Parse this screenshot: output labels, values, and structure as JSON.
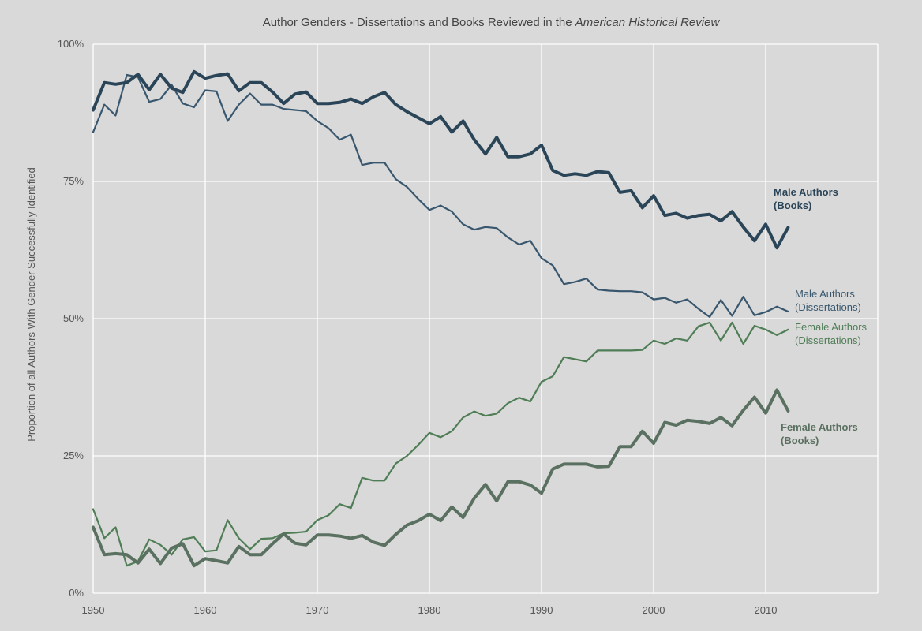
{
  "chart_data": {
    "type": "line",
    "title": {
      "main": "Author Genders - Dissertations and Books Reviewed in the ",
      "italic": "American Historical Review"
    },
    "xlabel": "",
    "ylabel": "Proportion of all Authors With Gender Successfully Identified",
    "xlim": [
      1950,
      2020
    ],
    "ylim": [
      0,
      100
    ],
    "x_ticks": [
      1950,
      1960,
      1970,
      1980,
      1990,
      2000,
      2010
    ],
    "x_tick_labels": [
      "1950",
      "1960",
      "1970",
      "1980",
      "1990",
      "2000",
      "2010"
    ],
    "y_ticks": [
      0,
      25,
      50,
      75,
      100
    ],
    "y_tick_labels": [
      "0%",
      "25%",
      "50%",
      "75%",
      "100%"
    ],
    "grid": true,
    "x": [
      1950,
      1951,
      1952,
      1953,
      1954,
      1955,
      1956,
      1957,
      1958,
      1959,
      1960,
      1961,
      1962,
      1963,
      1964,
      1965,
      1966,
      1967,
      1968,
      1969,
      1970,
      1971,
      1972,
      1973,
      1974,
      1975,
      1976,
      1977,
      1978,
      1979,
      1980,
      1981,
      1982,
      1983,
      1984,
      1985,
      1986,
      1987,
      1988,
      1989,
      1990,
      1991,
      1992,
      1993,
      1994,
      1995,
      1996,
      1997,
      1998,
      1999,
      2000,
      2001,
      2002,
      2003,
      2004,
      2005,
      2006,
      2007,
      2008,
      2009,
      2010,
      2011,
      2012
    ],
    "series": [
      {
        "name": "Male Authors (Books)",
        "label_lines": [
          "Male Authors",
          "(Books)"
        ],
        "color": "#2b4558",
        "width": 4,
        "bold": true,
        "values": [
          88,
          93,
          92.7,
          93,
          94.5,
          91.7,
          94.5,
          92,
          91.2,
          95,
          93.8,
          94.3,
          94.6,
          91.5,
          93,
          93,
          91.3,
          89.2,
          90.9,
          91.3,
          89.2,
          89.2,
          89.4,
          90,
          89.2,
          90.4,
          91.2,
          89,
          87.7,
          86.6,
          85.5,
          86.8,
          84,
          86,
          82.6,
          80,
          83,
          79.5,
          79.5,
          80,
          81.6,
          77,
          76.1,
          76.4,
          76.1,
          76.8,
          76.6,
          73,
          73.3,
          70.2,
          72.4,
          68.8,
          69.2,
          68.3,
          68.8,
          69,
          67.8,
          69.5,
          66.7,
          64.2,
          67.2,
          62.9,
          66.6
        ]
      },
      {
        "name": "Male Authors (Dissertations)",
        "label_lines": [
          "Male Authors",
          "(Dissertations)"
        ],
        "color": "#38576e",
        "width": 2.2,
        "bold": false,
        "values": [
          84,
          89,
          87,
          94.4,
          94,
          89.5,
          90,
          92.6,
          89.2,
          88.5,
          91.6,
          91.4,
          86,
          89,
          91,
          89,
          89,
          88.2,
          88,
          87.8,
          86,
          84.7,
          82.6,
          83.5,
          78,
          78.4,
          78.4,
          75.4,
          74,
          71.8,
          69.8,
          70.6,
          69.5,
          67.2,
          66.2,
          66.7,
          66.5,
          64.8,
          63.5,
          64.2,
          61,
          59.7,
          56.3,
          56.7,
          57.3,
          55.3,
          55.1,
          55,
          55,
          54.8,
          53.5,
          53.8,
          52.9,
          53.5,
          51.8,
          50.3,
          53.4,
          50.5,
          54,
          50.6,
          51.2,
          52.2,
          51.3
        ]
      },
      {
        "name": "Female Authors (Dissertations)",
        "label_lines": [
          "Female Authors",
          "(Dissertations)"
        ],
        "color": "#4f7d55",
        "width": 2.2,
        "bold": false,
        "values": [
          15.3,
          10,
          12,
          5,
          5.8,
          9.8,
          8.8,
          7,
          9.8,
          10.2,
          7.6,
          7.8,
          13.3,
          10,
          8,
          9.9,
          10,
          10.9,
          11,
          11.2,
          13.3,
          14.2,
          16.2,
          15.5,
          21,
          20.5,
          20.5,
          23.6,
          25,
          27,
          29.2,
          28.4,
          29.5,
          32,
          33.1,
          32.3,
          32.7,
          34.6,
          35.6,
          34.9,
          38.5,
          39.5,
          43,
          42.6,
          42.2,
          44.2,
          44.2,
          44.2,
          44.2,
          44.3,
          46,
          45.4,
          46.4,
          46,
          48.6,
          49.3,
          46,
          49.3,
          45.4,
          48.7,
          48,
          47,
          48
        ]
      },
      {
        "name": "Female Authors (Books)",
        "label_lines": [
          "Female Authors",
          "(Books)"
        ],
        "color": "#5a7060",
        "width": 4,
        "bold": true,
        "values": [
          12,
          7,
          7.2,
          7,
          5.5,
          8,
          5.4,
          8.2,
          9,
          5,
          6.3,
          5.9,
          5.5,
          8.5,
          7,
          7,
          9,
          10.8,
          9.1,
          8.8,
          10.6,
          10.6,
          10.4,
          10,
          10.5,
          9.3,
          8.7,
          10.7,
          12.4,
          13.2,
          14.4,
          13.2,
          15.7,
          13.8,
          17.3,
          19.8,
          16.8,
          20.3,
          20.3,
          19.7,
          18.2,
          22.6,
          23.5,
          23.5,
          23.5,
          23,
          23.1,
          26.7,
          26.7,
          29.5,
          27.3,
          31.1,
          30.6,
          31.5,
          31.3,
          30.9,
          32,
          30.5,
          33.3,
          35.7,
          32.8,
          37,
          33.2
        ]
      }
    ]
  }
}
